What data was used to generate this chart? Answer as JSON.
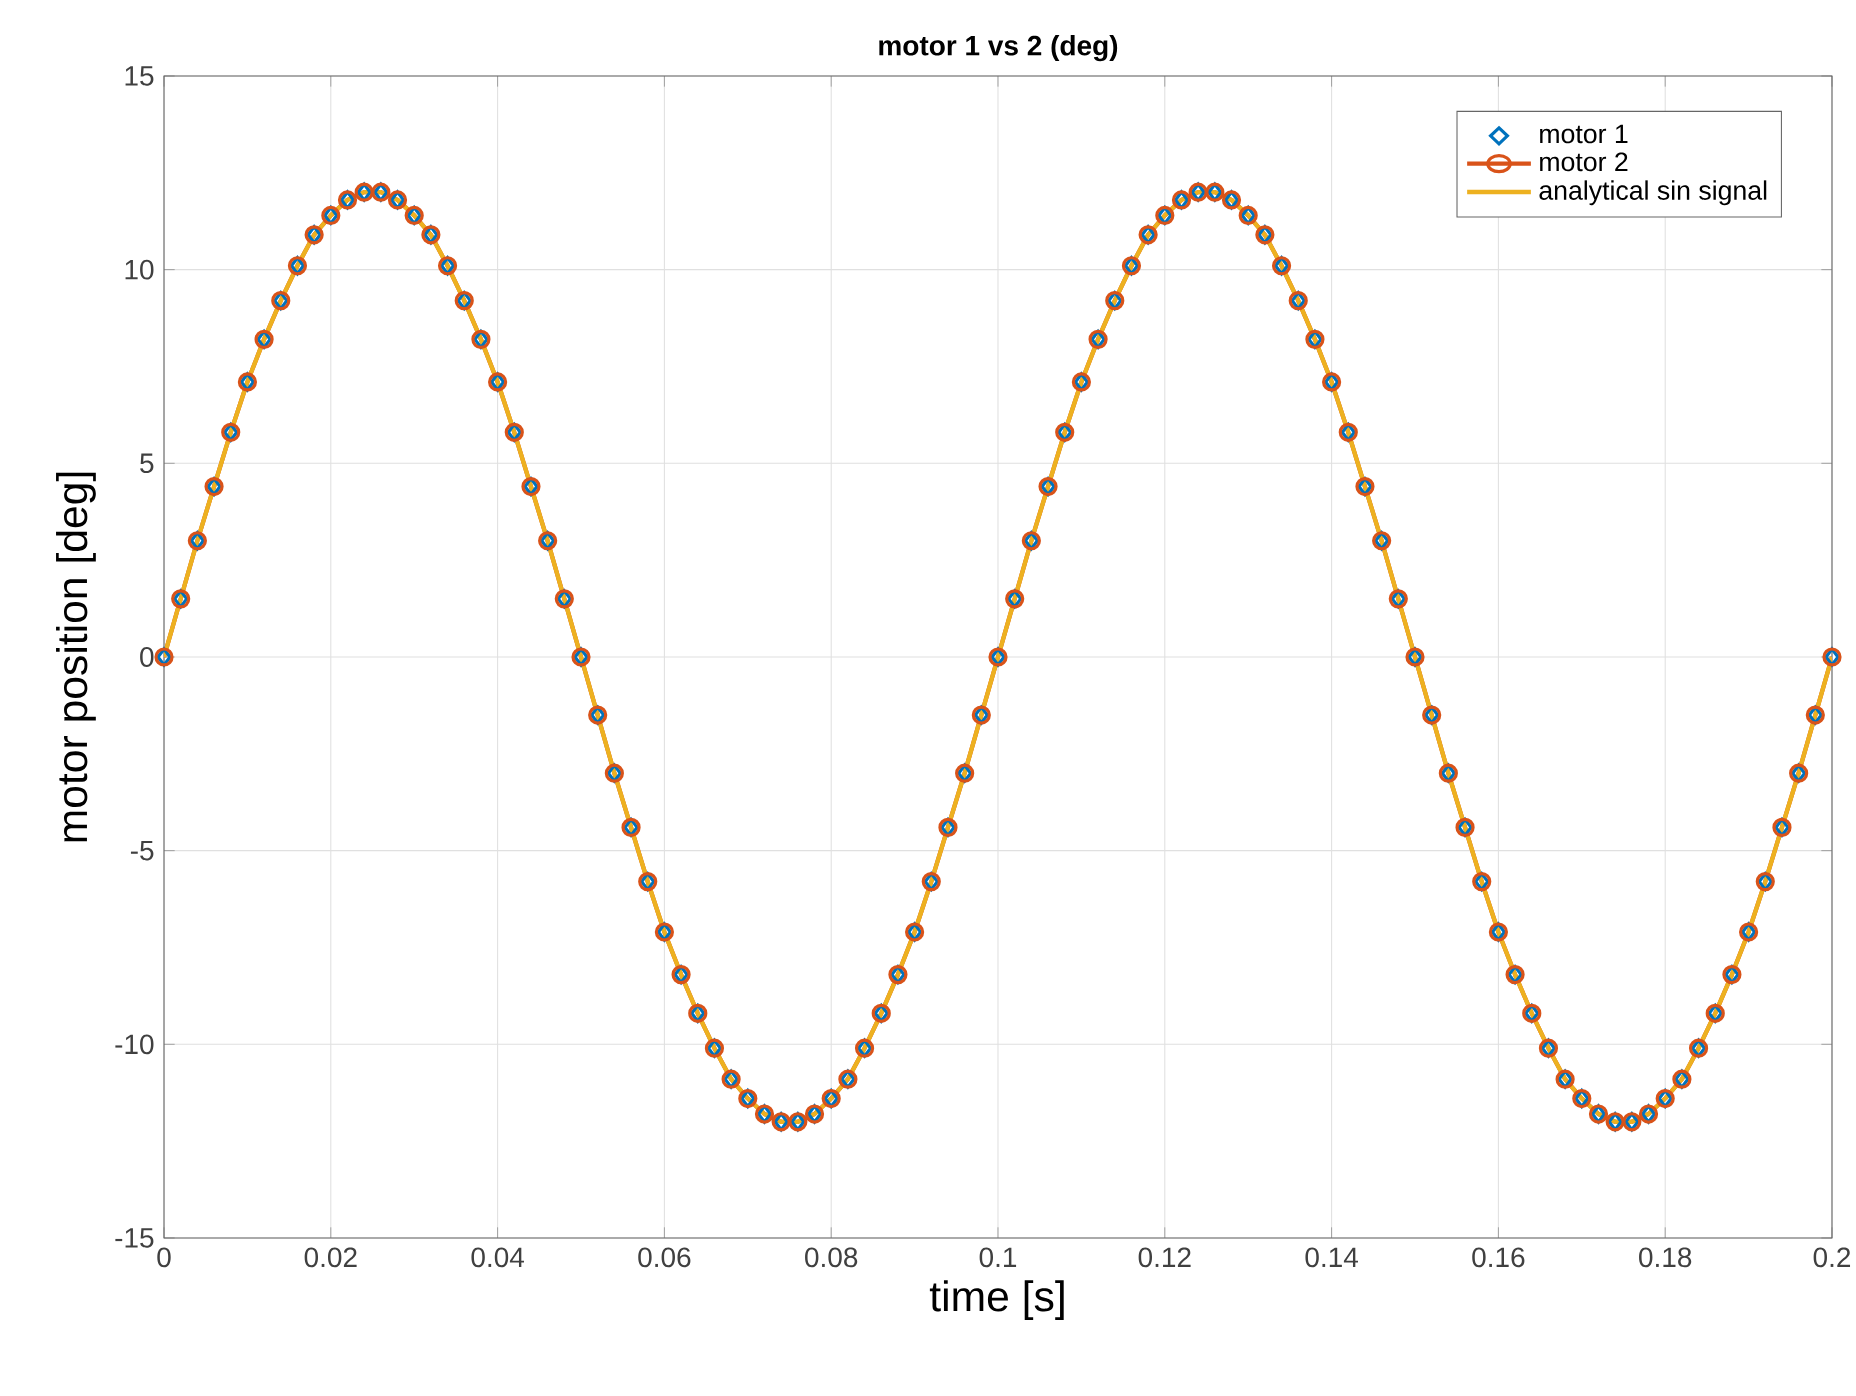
{
  "chart_data": {
    "type": "line",
    "title": "motor 1 vs 2 (deg)",
    "xlabel": "time [s]",
    "ylabel": "motor position [deg]",
    "xlim": [
      0,
      0.2
    ],
    "ylim": [
      -15,
      15
    ],
    "xticks": [
      0,
      0.02,
      0.04,
      0.06,
      0.08,
      0.1,
      0.12,
      0.14,
      0.16,
      0.18,
      0.2
    ],
    "yticks": [
      -15,
      -10,
      -5,
      0,
      5,
      10,
      15
    ],
    "grid": true,
    "legend": "top right",
    "x": [
      0,
      0.002,
      0.004,
      0.006,
      0.008,
      0.01,
      0.012,
      0.014,
      0.016,
      0.018,
      0.02,
      0.022,
      0.024,
      0.026,
      0.028,
      0.03,
      0.032,
      0.034,
      0.036,
      0.038,
      0.04,
      0.042,
      0.044,
      0.046,
      0.048,
      0.05,
      0.052,
      0.054,
      0.056,
      0.058,
      0.06,
      0.062,
      0.064,
      0.066,
      0.068,
      0.07,
      0.072,
      0.074,
      0.076,
      0.078,
      0.08,
      0.082,
      0.084,
      0.086,
      0.088,
      0.09,
      0.092,
      0.094,
      0.096,
      0.098,
      0.1,
      0.102,
      0.104,
      0.106,
      0.108,
      0.11,
      0.112,
      0.114,
      0.116,
      0.118,
      0.12,
      0.122,
      0.124,
      0.126,
      0.128,
      0.13,
      0.132,
      0.134,
      0.136,
      0.138,
      0.14,
      0.142,
      0.144,
      0.146,
      0.148,
      0.15,
      0.152,
      0.154,
      0.156,
      0.158,
      0.16,
      0.162,
      0.164,
      0.166,
      0.168,
      0.17,
      0.172,
      0.174,
      0.176,
      0.178,
      0.18,
      0.182,
      0.184,
      0.186,
      0.188,
      0.19,
      0.192,
      0.194,
      0.196,
      0.198,
      0.2
    ],
    "series": [
      {
        "name": "motor 1",
        "type": "scatter",
        "marker": "diamond",
        "color": "#0072bd",
        "values": [
          0,
          1.5,
          3.0,
          4.4,
          5.8,
          7.1,
          8.2,
          9.2,
          10.1,
          10.9,
          11.4,
          11.8,
          12.0,
          12.0,
          11.8,
          11.4,
          10.9,
          10.1,
          9.2,
          8.2,
          7.1,
          5.8,
          4.4,
          3.0,
          1.5,
          0,
          -1.5,
          -3.0,
          -4.4,
          -5.8,
          -7.1,
          -8.2,
          -9.2,
          -10.1,
          -10.9,
          -11.4,
          -11.8,
          -12.0,
          -12.0,
          -11.8,
          -11.4,
          -10.9,
          -10.1,
          -9.2,
          -8.2,
          -7.1,
          -5.8,
          -4.4,
          -3.0,
          -1.5,
          0,
          1.5,
          3.0,
          4.4,
          5.8,
          7.1,
          8.2,
          9.2,
          10.1,
          10.9,
          11.4,
          11.8,
          12.0,
          12.0,
          11.8,
          11.4,
          10.9,
          10.1,
          9.2,
          8.2,
          7.1,
          5.8,
          4.4,
          3.0,
          1.5,
          0,
          -1.5,
          -3.0,
          -4.4,
          -5.8,
          -7.1,
          -8.2,
          -9.2,
          -10.1,
          -10.9,
          -11.4,
          -11.8,
          -12.0,
          -12.0,
          -11.8,
          -11.4,
          -10.9,
          -10.1,
          -9.2,
          -8.2,
          -7.1,
          -5.8,
          -4.4,
          -3.0,
          -1.5,
          0
        ]
      },
      {
        "name": "motor 2",
        "marker": "circle",
        "color": "#d95319",
        "values": [
          0,
          1.5,
          3.0,
          4.4,
          5.8,
          7.1,
          8.2,
          9.2,
          10.1,
          10.9,
          11.4,
          11.8,
          12.0,
          12.0,
          11.8,
          11.4,
          10.9,
          10.1,
          9.2,
          8.2,
          7.1,
          5.8,
          4.4,
          3.0,
          1.5,
          0,
          -1.5,
          -3.0,
          -4.4,
          -5.8,
          -7.1,
          -8.2,
          -9.2,
          -10.1,
          -10.9,
          -11.4,
          -11.8,
          -12.0,
          -12.0,
          -11.8,
          -11.4,
          -10.9,
          -10.1,
          -9.2,
          -8.2,
          -7.1,
          -5.8,
          -4.4,
          -3.0,
          -1.5,
          0,
          1.5,
          3.0,
          4.4,
          5.8,
          7.1,
          8.2,
          9.2,
          10.1,
          10.9,
          11.4,
          11.8,
          12.0,
          12.0,
          11.8,
          11.4,
          10.9,
          10.1,
          9.2,
          8.2,
          7.1,
          5.8,
          4.4,
          3.0,
          1.5,
          0,
          -1.5,
          -3.0,
          -4.4,
          -5.8,
          -7.1,
          -8.2,
          -9.2,
          -10.1,
          -10.9,
          -11.4,
          -11.8,
          -12.0,
          -12.0,
          -11.8,
          -11.4,
          -10.9,
          -10.1,
          -9.2,
          -8.2,
          -7.1,
          -5.8,
          -4.4,
          -3.0,
          -1.5,
          0
        ]
      },
      {
        "name": "analytical sin signal",
        "marker": "none",
        "color": "#edb120",
        "values": [
          0,
          1.5,
          3.0,
          4.4,
          5.8,
          7.1,
          8.2,
          9.2,
          10.1,
          10.9,
          11.4,
          11.8,
          12.0,
          12.0,
          11.8,
          11.4,
          10.9,
          10.1,
          9.2,
          8.2,
          7.1,
          5.8,
          4.4,
          3.0,
          1.5,
          0,
          -1.5,
          -3.0,
          -4.4,
          -5.8,
          -7.1,
          -8.2,
          -9.2,
          -10.1,
          -10.9,
          -11.4,
          -11.8,
          -12.0,
          -12.0,
          -11.8,
          -11.4,
          -10.9,
          -10.1,
          -9.2,
          -8.2,
          -7.1,
          -5.8,
          -4.4,
          -3.0,
          -1.5,
          0,
          1.5,
          3.0,
          4.4,
          5.8,
          7.1,
          8.2,
          9.2,
          10.1,
          10.9,
          11.4,
          11.8,
          12.0,
          12.0,
          11.8,
          11.4,
          10.9,
          10.1,
          9.2,
          8.2,
          7.1,
          5.8,
          4.4,
          3.0,
          1.5,
          0,
          -1.5,
          -3.0,
          -4.4,
          -5.8,
          -7.1,
          -8.2,
          -9.2,
          -10.1,
          -10.9,
          -11.4,
          -11.8,
          -12.0,
          -12.0,
          -11.8,
          -11.4,
          -10.9,
          -10.1,
          -9.2,
          -8.2,
          -7.1,
          -5.8,
          -4.4,
          -3.0,
          -1.5,
          0
        ]
      }
    ]
  }
}
